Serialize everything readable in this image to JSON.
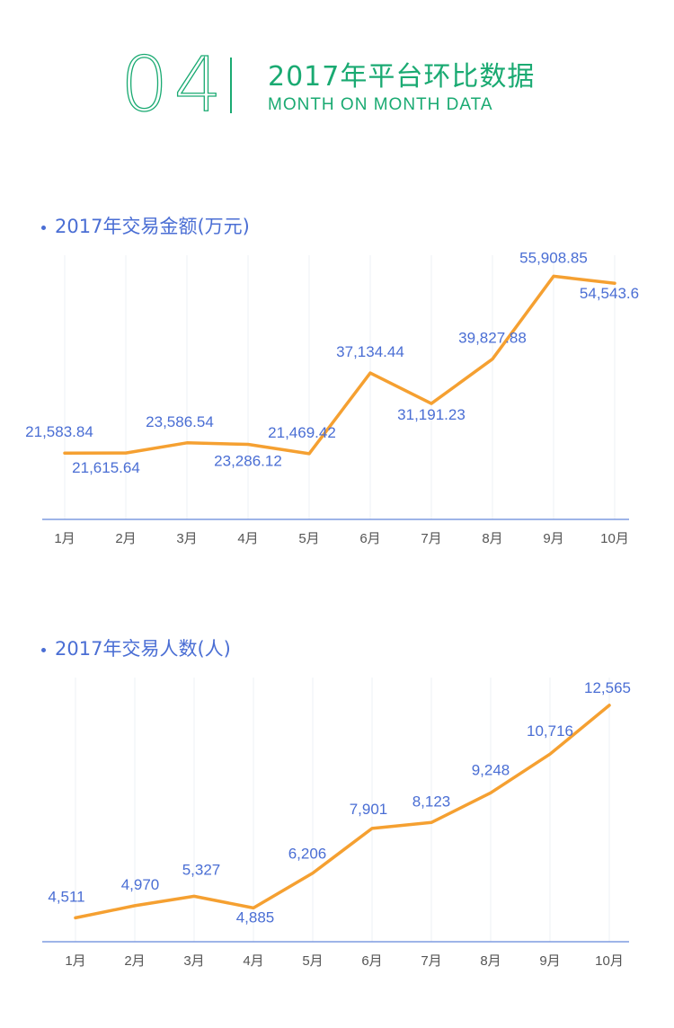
{
  "header": {
    "number": "04",
    "title_cn": "2017年平台环比数据",
    "title_en": "MONTH ON MONTH DATA"
  },
  "colors": {
    "accent_green": "#1aaa72",
    "label_blue": "#4a6ed4",
    "line_orange": "#f5a031",
    "axis_blue": "#7f9be0",
    "grid": "#eef0f5"
  },
  "chart_data": [
    {
      "type": "line",
      "title": "2017年交易金额(万元)",
      "categories": [
        "1月",
        "2月",
        "3月",
        "4月",
        "5月",
        "6月",
        "7月",
        "8月",
        "9月",
        "10月"
      ],
      "values": [
        21583.84,
        21615.64,
        23586.54,
        23286.12,
        21469.42,
        37134.44,
        31191.23,
        39827.88,
        55908.85,
        54543.6
      ],
      "labels": [
        "21,583.84",
        "21,615.64",
        "23,586.54",
        "23,286.12",
        "21,469.42",
        "37,134.44",
        "31,191.23",
        "39,827.88",
        "55,908.85",
        "54,543.6"
      ],
      "grid": true,
      "legend": "none"
    },
    {
      "type": "line",
      "title": "2017年交易人数(人)",
      "categories": [
        "1月",
        "2月",
        "3月",
        "4月",
        "5月",
        "6月",
        "7月",
        "8月",
        "9月",
        "10月"
      ],
      "values": [
        4511,
        4970,
        5327,
        4885,
        6206,
        7901,
        8123,
        9248,
        10716,
        12565
      ],
      "labels": [
        "4,511",
        "4,970",
        "5,327",
        "4,885",
        "6,206",
        "7,901",
        "8,123",
        "9,248",
        "10,716",
        "12,565"
      ],
      "grid": true,
      "legend": "none"
    }
  ]
}
